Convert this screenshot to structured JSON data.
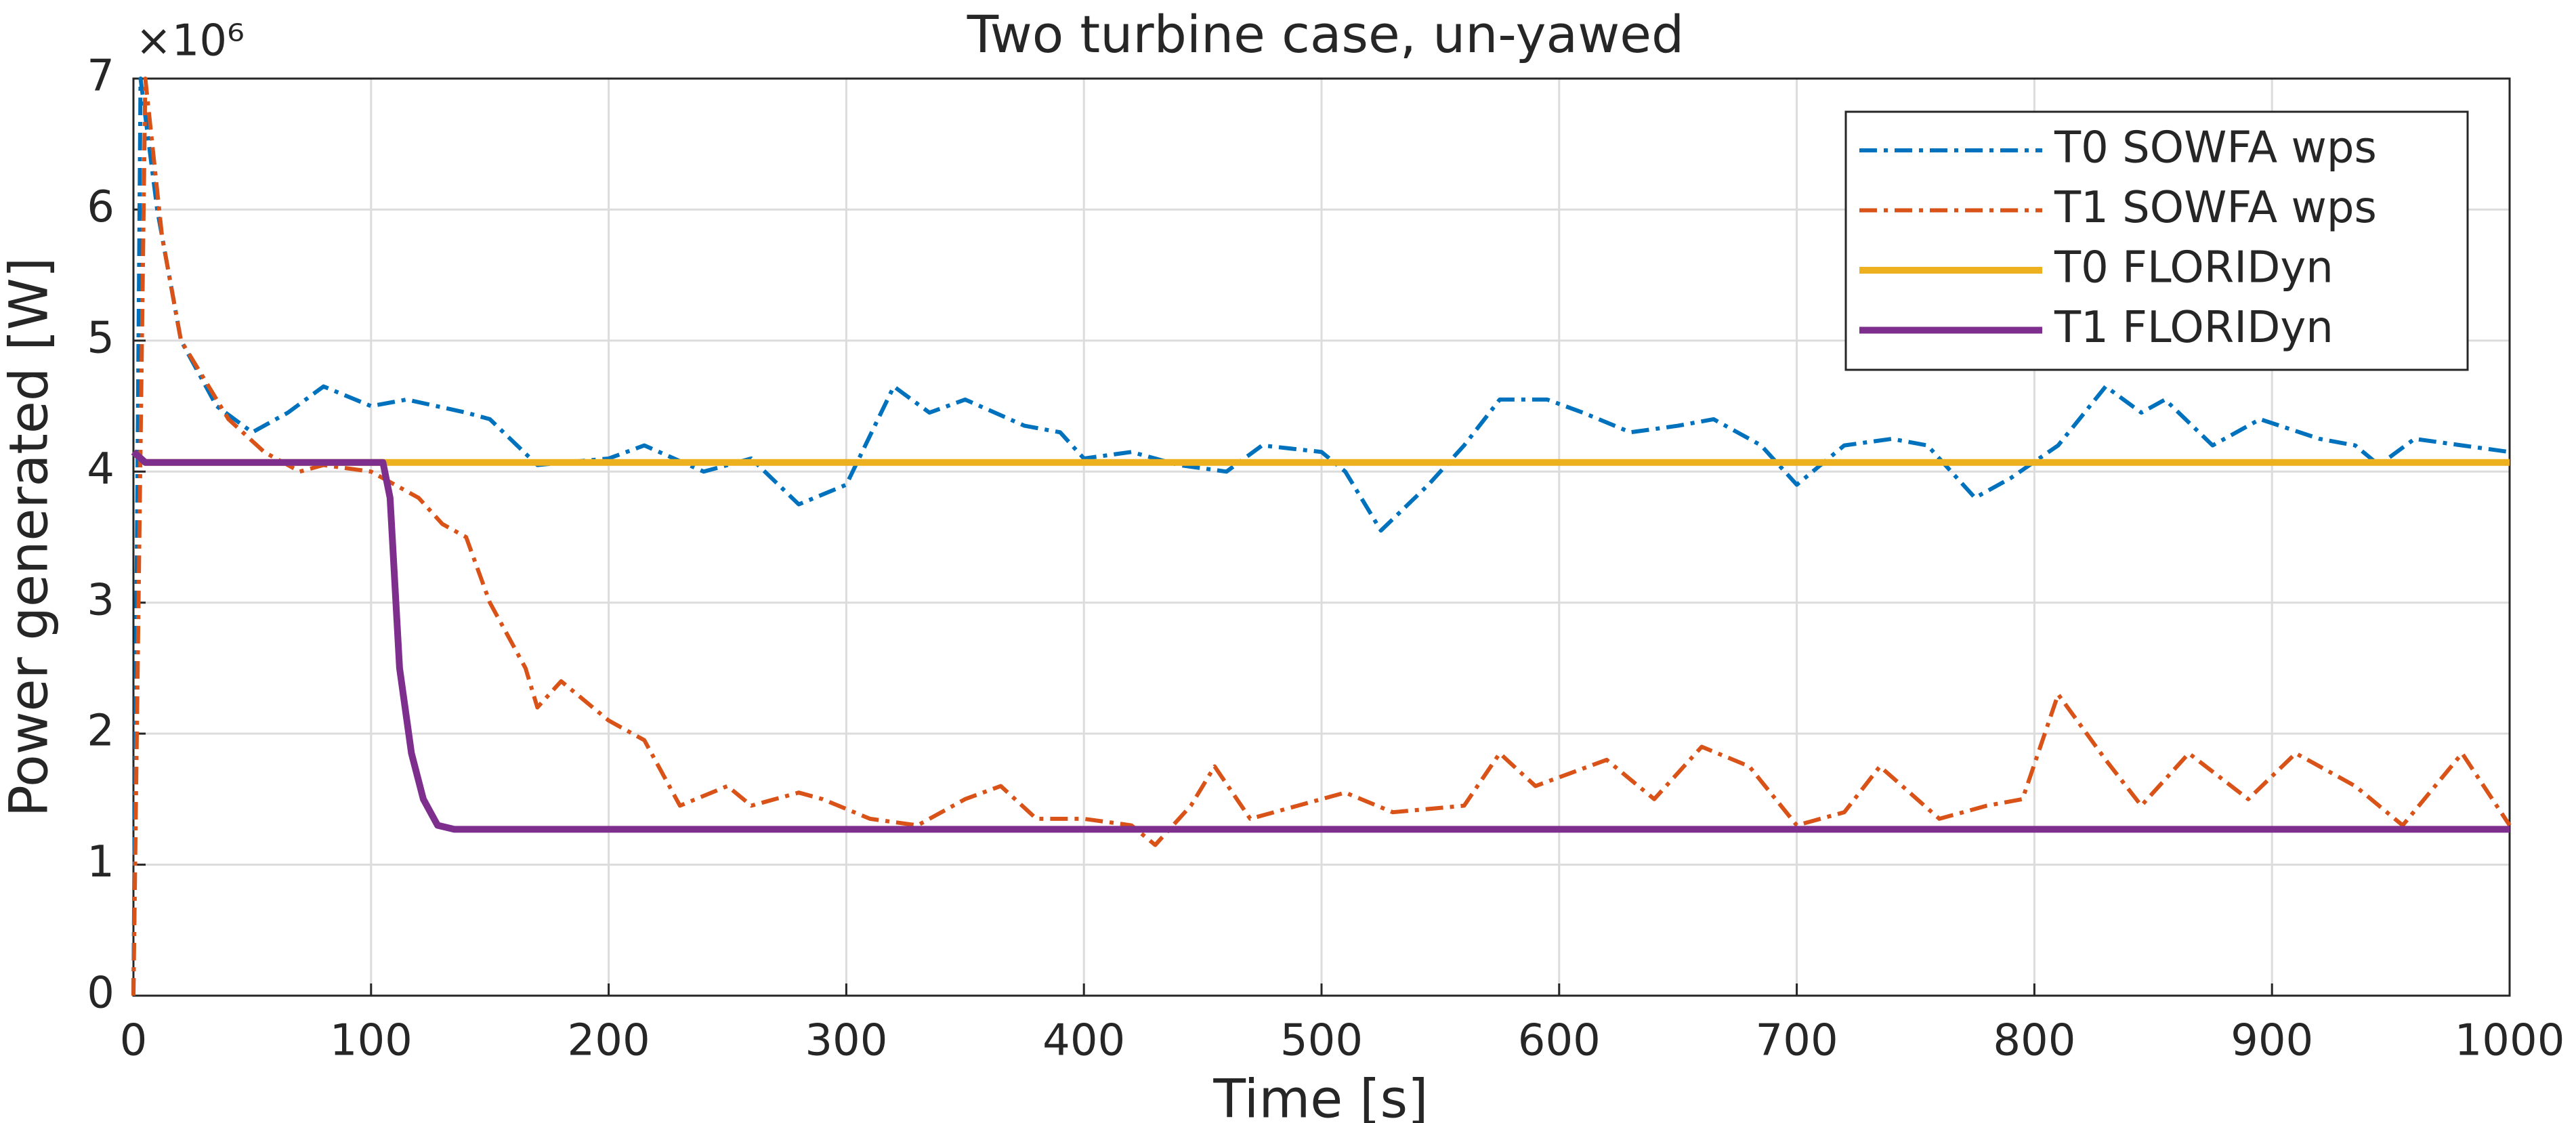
{
  "chart_data": {
    "type": "line",
    "title": "Two turbine case, un-yawed",
    "x_label": "Time [s]",
    "y_label": "Power generated [W]",
    "y_exponent_label": "×10⁶",
    "xlim": [
      0,
      1000
    ],
    "xticks": [
      0,
      100,
      200,
      300,
      400,
      500,
      600,
      700,
      800,
      900,
      1000
    ],
    "ylim": [
      0,
      7
    ],
    "yticks": [
      0,
      1,
      2,
      3,
      4,
      5,
      6,
      7
    ],
    "grid": true,
    "legend": "upper right",
    "series": [
      {
        "name": "T0 SOWFA wps",
        "color": "#0072BD",
        "style": "dashdot",
        "x": [
          0,
          3,
          10,
          20,
          35,
          50,
          65,
          80,
          100,
          115,
          140,
          150,
          170,
          200,
          215,
          240,
          260,
          280,
          300,
          320,
          335,
          350,
          375,
          390,
          400,
          420,
          440,
          460,
          475,
          500,
          510,
          525,
          545,
          560,
          575,
          595,
          610,
          630,
          650,
          665,
          685,
          700,
          720,
          740,
          755,
          775,
          790,
          810,
          830,
          845,
          855,
          875,
          895,
          920,
          935,
          945,
          960,
          980,
          1000
        ],
        "values": [
          0,
          7,
          6,
          5,
          4.5,
          4.3,
          4.45,
          4.65,
          4.5,
          4.55,
          4.45,
          4.4,
          4.05,
          4.1,
          4.2,
          4.0,
          4.1,
          3.75,
          3.9,
          4.65,
          4.45,
          4.55,
          4.35,
          4.3,
          4.1,
          4.15,
          4.05,
          4.0,
          4.2,
          4.15,
          4.0,
          3.55,
          3.9,
          4.2,
          4.55,
          4.55,
          4.45,
          4.3,
          4.35,
          4.4,
          4.2,
          3.9,
          4.2,
          4.25,
          4.2,
          3.8,
          3.95,
          4.2,
          4.65,
          4.45,
          4.55,
          4.2,
          4.4,
          4.25,
          4.2,
          4.05,
          4.25,
          4.2,
          4.15
        ]
      },
      {
        "name": "T1 SOWFA wps",
        "color": "#D95319",
        "style": "dashdot",
        "x": [
          0,
          5,
          12,
          20,
          40,
          55,
          70,
          80,
          100,
          120,
          130,
          140,
          150,
          165,
          170,
          175,
          180,
          200,
          215,
          230,
          250,
          260,
          280,
          290,
          310,
          330,
          350,
          365,
          380,
          400,
          420,
          430,
          445,
          455,
          470,
          490,
          510,
          530,
          560,
          575,
          590,
          620,
          640,
          660,
          680,
          700,
          720,
          735,
          760,
          780,
          795,
          810,
          830,
          845,
          865,
          890,
          910,
          935,
          955,
          980,
          1000
        ],
        "values": [
          0,
          7,
          5.8,
          5,
          4.4,
          4.15,
          4.0,
          4.05,
          4.0,
          3.8,
          3.6,
          3.5,
          3.0,
          2.5,
          2.2,
          2.3,
          2.4,
          2.1,
          1.95,
          1.45,
          1.6,
          1.45,
          1.55,
          1.5,
          1.35,
          1.3,
          1.5,
          1.6,
          1.35,
          1.35,
          1.3,
          1.15,
          1.45,
          1.75,
          1.35,
          1.45,
          1.55,
          1.4,
          1.45,
          1.85,
          1.6,
          1.8,
          1.5,
          1.9,
          1.75,
          1.3,
          1.4,
          1.75,
          1.35,
          1.45,
          1.5,
          2.3,
          1.8,
          1.45,
          1.85,
          1.5,
          1.85,
          1.6,
          1.3,
          1.85,
          1.3
        ]
      },
      {
        "name": "T0 FLORIDyn",
        "color": "#EDB120",
        "style": "solid",
        "x": [
          0,
          5,
          1000
        ],
        "values": [
          4.15,
          4.07,
          4.07
        ]
      },
      {
        "name": "T1 FLORIDyn",
        "color": "#7E2F8E",
        "style": "solid",
        "x": [
          0,
          5,
          105,
          108,
          112,
          117,
          122,
          128,
          135,
          1000
        ],
        "values": [
          4.15,
          4.07,
          4.07,
          3.8,
          2.5,
          1.85,
          1.5,
          1.3,
          1.27,
          1.27
        ]
      }
    ]
  }
}
